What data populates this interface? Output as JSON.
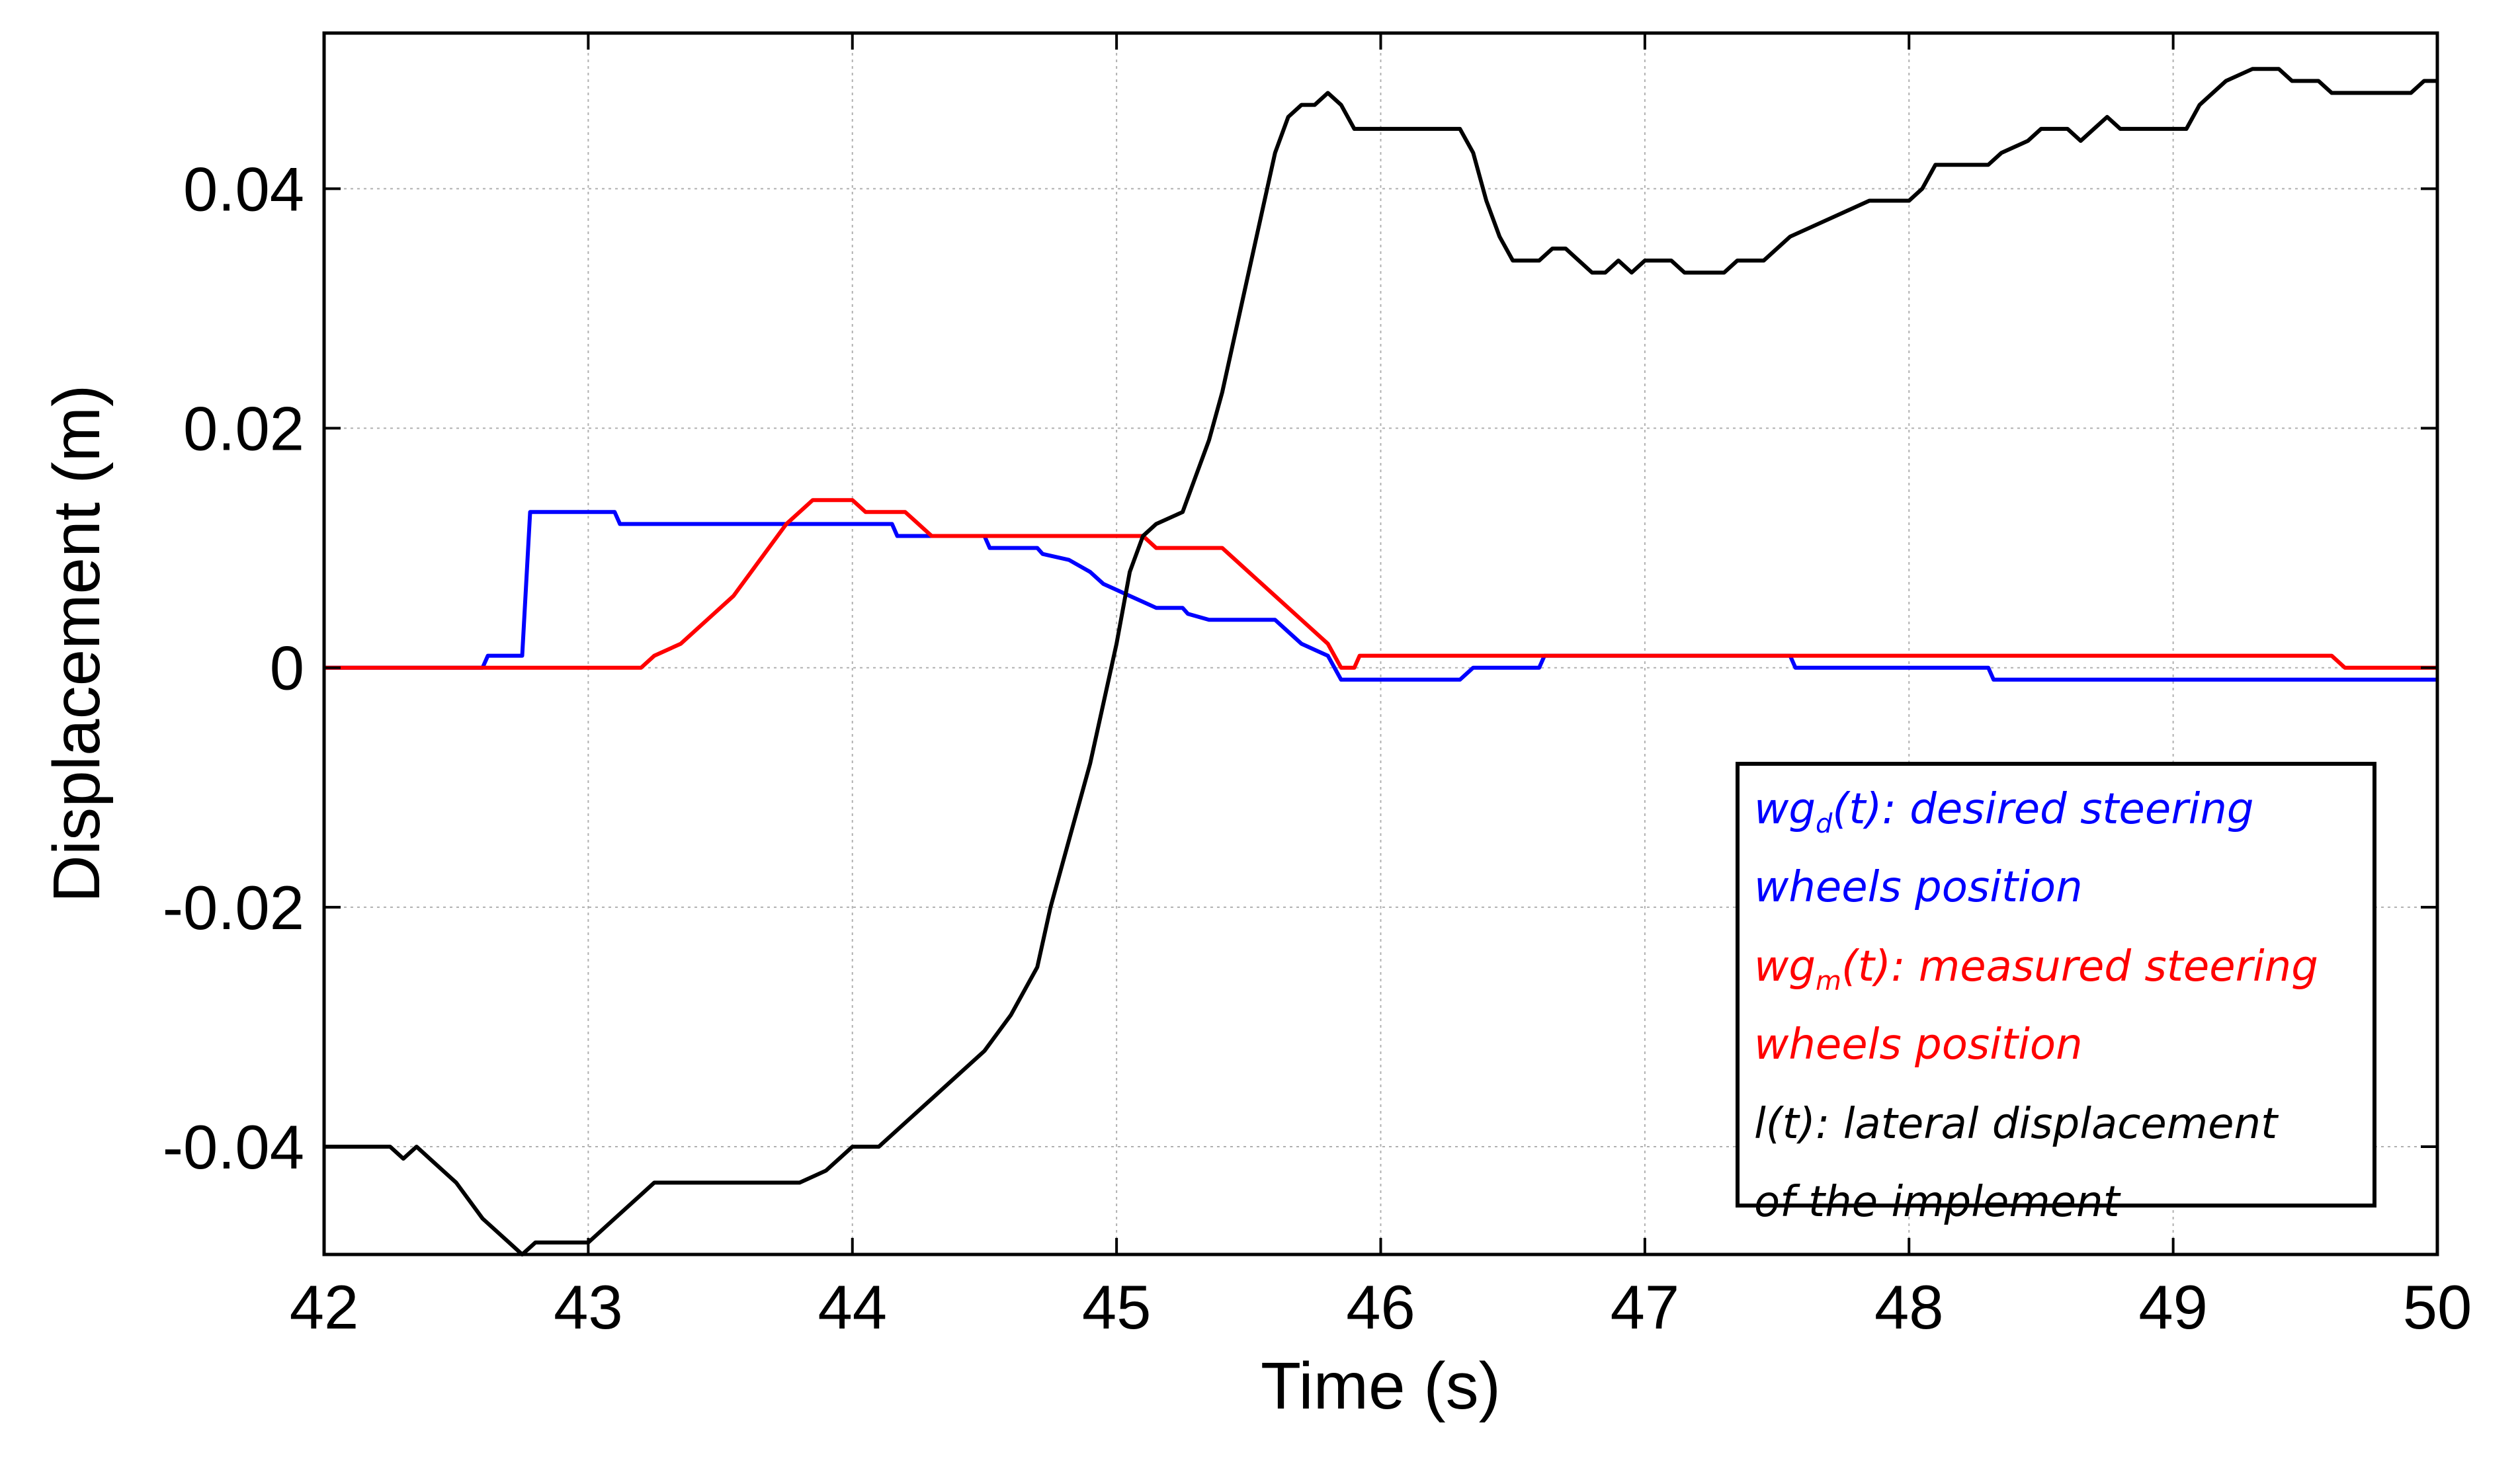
{
  "chart_data": {
    "type": "line",
    "title": "",
    "xlabel": "Time (s)",
    "ylabel": "Displacement (m)",
    "xlim": [
      42,
      50
    ],
    "ylim": [
      -0.049,
      0.053
    ],
    "grid": true,
    "legend_position": "bottom-right",
    "x_ticks": [
      42,
      43,
      44,
      45,
      46,
      47,
      48,
      49,
      50
    ],
    "x_tick_labels": [
      "42",
      "43",
      "44",
      "45",
      "46",
      "47",
      "48",
      "49",
      "50"
    ],
    "y_ticks": [
      -0.04,
      -0.02,
      0,
      0.02,
      0.04
    ],
    "y_tick_labels": [
      "-0.04",
      "-0.02",
      "0",
      "0.02",
      "0.04"
    ],
    "legend": [
      {
        "series": "wgd",
        "prefix": "wg",
        "sub": "d",
        "suffix": "(t): desired steering",
        "line2": "wheels position",
        "color": "#0000ff"
      },
      {
        "series": "wgm",
        "prefix": "wg",
        "sub": "m",
        "suffix": "(t): measured steering",
        "line2": "wheels position",
        "color": "#ff0000"
      },
      {
        "series": "l",
        "prefix": "l(t): lateral displacement",
        "sub": "",
        "suffix": "",
        "line2": "of the implement",
        "color": "#000000"
      }
    ],
    "series": [
      {
        "key": "wgd",
        "color": "#0000ff",
        "points": [
          [
            42.0,
            0.0
          ],
          [
            42.6,
            0.0
          ],
          [
            42.62,
            0.001
          ],
          [
            42.75,
            0.001
          ],
          [
            42.78,
            0.013
          ],
          [
            43.1,
            0.013
          ],
          [
            43.12,
            0.012
          ],
          [
            44.15,
            0.012
          ],
          [
            44.17,
            0.011
          ],
          [
            44.5,
            0.011
          ],
          [
            44.52,
            0.01
          ],
          [
            44.7,
            0.01
          ],
          [
            44.72,
            0.0095
          ],
          [
            44.82,
            0.009
          ],
          [
            44.9,
            0.008
          ],
          [
            44.95,
            0.007
          ],
          [
            45.0,
            0.0065
          ],
          [
            45.05,
            0.006
          ],
          [
            45.1,
            0.0055
          ],
          [
            45.15,
            0.005
          ],
          [
            45.25,
            0.005
          ],
          [
            45.27,
            0.0045
          ],
          [
            45.35,
            0.004
          ],
          [
            45.6,
            0.004
          ],
          [
            45.65,
            0.003
          ],
          [
            45.7,
            0.002
          ],
          [
            45.75,
            0.0015
          ],
          [
            45.8,
            0.001
          ],
          [
            45.85,
            -0.001
          ],
          [
            46.3,
            -0.001
          ],
          [
            46.35,
            0.0
          ],
          [
            46.6,
            0.0
          ],
          [
            46.62,
            0.001
          ],
          [
            47.55,
            0.001
          ],
          [
            47.57,
            0.0
          ],
          [
            48.3,
            0.0
          ],
          [
            48.32,
            -0.001
          ],
          [
            50.0,
            -0.001
          ]
        ]
      },
      {
        "key": "wgm",
        "color": "#ff0000",
        "points": [
          [
            42.0,
            0.0
          ],
          [
            43.2,
            0.0
          ],
          [
            43.25,
            0.001
          ],
          [
            43.35,
            0.002
          ],
          [
            43.45,
            0.004
          ],
          [
            43.55,
            0.006
          ],
          [
            43.65,
            0.009
          ],
          [
            43.75,
            0.012
          ],
          [
            43.85,
            0.014
          ],
          [
            44.0,
            0.014
          ],
          [
            44.05,
            0.013
          ],
          [
            44.2,
            0.013
          ],
          [
            44.25,
            0.012
          ],
          [
            44.3,
            0.011
          ],
          [
            44.95,
            0.011
          ],
          [
            45.1,
            0.011
          ],
          [
            45.15,
            0.01
          ],
          [
            45.4,
            0.01
          ],
          [
            45.5,
            0.008
          ],
          [
            45.6,
            0.006
          ],
          [
            45.7,
            0.004
          ],
          [
            45.8,
            0.002
          ],
          [
            45.85,
            0.0
          ],
          [
            45.9,
            0.0
          ],
          [
            45.92,
            0.001
          ],
          [
            49.6,
            0.001
          ],
          [
            49.65,
            0.0
          ],
          [
            50.0,
            0.0
          ]
        ]
      },
      {
        "key": "l",
        "color": "#000000",
        "points": [
          [
            42.0,
            -0.04
          ],
          [
            42.25,
            -0.04
          ],
          [
            42.3,
            -0.041
          ],
          [
            42.35,
            -0.04
          ],
          [
            42.4,
            -0.041
          ],
          [
            42.5,
            -0.043
          ],
          [
            42.6,
            -0.046
          ],
          [
            42.7,
            -0.048
          ],
          [
            42.75,
            -0.049
          ],
          [
            42.8,
            -0.048
          ],
          [
            43.0,
            -0.048
          ],
          [
            43.1,
            -0.046
          ],
          [
            43.2,
            -0.044
          ],
          [
            43.25,
            -0.043
          ],
          [
            43.8,
            -0.043
          ],
          [
            43.9,
            -0.042
          ],
          [
            43.95,
            -0.041
          ],
          [
            44.0,
            -0.04
          ],
          [
            44.1,
            -0.04
          ],
          [
            44.2,
            -0.038
          ],
          [
            44.3,
            -0.036
          ],
          [
            44.4,
            -0.034
          ],
          [
            44.5,
            -0.032
          ],
          [
            44.6,
            -0.029
          ],
          [
            44.7,
            -0.025
          ],
          [
            44.75,
            -0.02
          ],
          [
            44.8,
            -0.016
          ],
          [
            44.9,
            -0.008
          ],
          [
            45.0,
            0.002
          ],
          [
            45.05,
            0.008
          ],
          [
            45.1,
            0.011
          ],
          [
            45.15,
            0.012
          ],
          [
            45.25,
            0.013
          ],
          [
            45.3,
            0.016
          ],
          [
            45.35,
            0.019
          ],
          [
            45.4,
            0.023
          ],
          [
            45.5,
            0.033
          ],
          [
            45.55,
            0.038
          ],
          [
            45.6,
            0.043
          ],
          [
            45.65,
            0.046
          ],
          [
            45.7,
            0.047
          ],
          [
            45.75,
            0.047
          ],
          [
            45.8,
            0.048
          ],
          [
            45.85,
            0.047
          ],
          [
            45.9,
            0.045
          ],
          [
            46.3,
            0.045
          ],
          [
            46.35,
            0.043
          ],
          [
            46.4,
            0.039
          ],
          [
            46.45,
            0.036
          ],
          [
            46.5,
            0.034
          ],
          [
            46.6,
            0.034
          ],
          [
            46.65,
            0.035
          ],
          [
            46.7,
            0.035
          ],
          [
            46.75,
            0.034
          ],
          [
            46.8,
            0.033
          ],
          [
            46.85,
            0.033
          ],
          [
            46.9,
            0.034
          ],
          [
            46.95,
            0.033
          ],
          [
            47.0,
            0.034
          ],
          [
            47.1,
            0.034
          ],
          [
            47.15,
            0.033
          ],
          [
            47.3,
            0.033
          ],
          [
            47.35,
            0.034
          ],
          [
            47.45,
            0.034
          ],
          [
            47.55,
            0.036
          ],
          [
            47.65,
            0.037
          ],
          [
            47.75,
            0.038
          ],
          [
            47.85,
            0.039
          ],
          [
            48.0,
            0.039
          ],
          [
            48.05,
            0.04
          ],
          [
            48.1,
            0.042
          ],
          [
            48.3,
            0.042
          ],
          [
            48.35,
            0.043
          ],
          [
            48.45,
            0.044
          ],
          [
            48.5,
            0.045
          ],
          [
            48.6,
            0.045
          ],
          [
            48.65,
            0.044
          ],
          [
            48.7,
            0.045
          ],
          [
            48.75,
            0.046
          ],
          [
            48.8,
            0.045
          ],
          [
            49.05,
            0.045
          ],
          [
            49.1,
            0.047
          ],
          [
            49.15,
            0.048
          ],
          [
            49.2,
            0.049
          ],
          [
            49.3,
            0.05
          ],
          [
            49.4,
            0.05
          ],
          [
            49.45,
            0.049
          ],
          [
            49.55,
            0.049
          ],
          [
            49.6,
            0.048
          ],
          [
            49.9,
            0.048
          ],
          [
            49.95,
            0.049
          ],
          [
            50.0,
            0.049
          ]
        ]
      }
    ]
  }
}
